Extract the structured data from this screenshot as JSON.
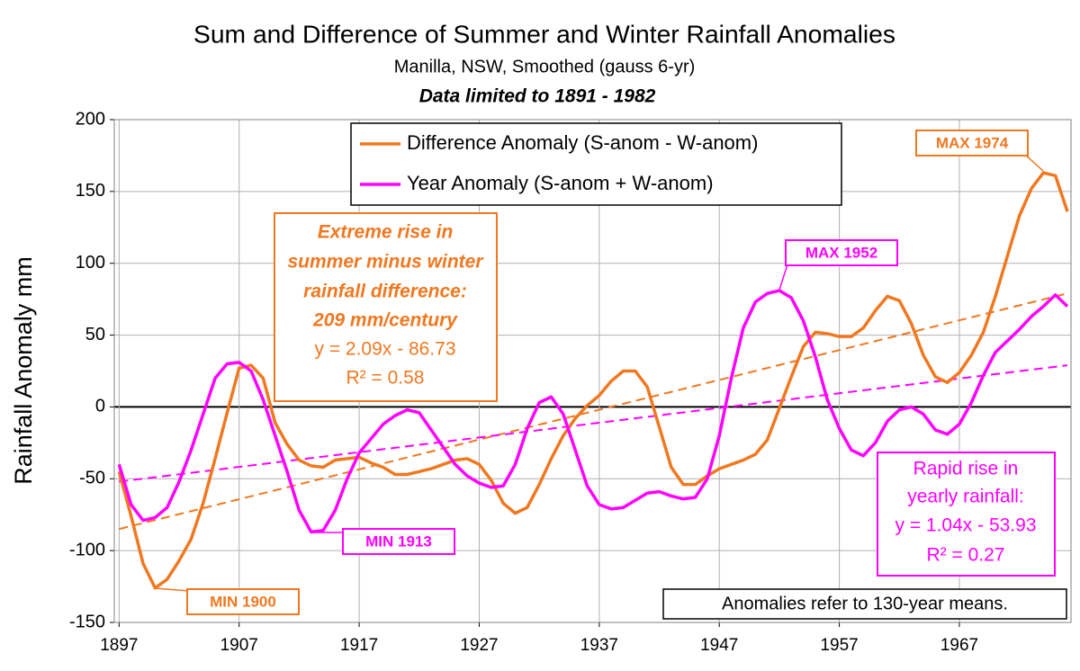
{
  "chart_data": {
    "type": "line",
    "title": "Sum and Difference of Summer and Winter Rainfall Anomalies",
    "subtitle": "Manilla, NSW, Smoothed (gauss 6-yr)",
    "subtitle2": "Data limited to 1891 -  1982",
    "y_label": "Rainfall Anomaly mm",
    "xlim": [
      1896.6,
      1976.3
    ],
    "xticks": [
      1897,
      1907,
      1917,
      1927,
      1937,
      1947,
      1957,
      1967
    ],
    "ylim": [
      -150,
      200
    ],
    "yticks": [
      -150,
      -100,
      -50,
      0,
      50,
      100,
      150,
      200
    ],
    "grid": true,
    "x": [
      1897,
      1898,
      1899,
      1900,
      1901,
      1902,
      1903,
      1904,
      1905,
      1906,
      1907,
      1908,
      1909,
      1910,
      1911,
      1912,
      1913,
      1914,
      1915,
      1916,
      1917,
      1918,
      1919,
      1920,
      1921,
      1922,
      1923,
      1924,
      1925,
      1926,
      1927,
      1928,
      1929,
      1930,
      1931,
      1932,
      1933,
      1934,
      1935,
      1936,
      1937,
      1938,
      1939,
      1940,
      1941,
      1942,
      1943,
      1944,
      1945,
      1946,
      1947,
      1948,
      1949,
      1950,
      1951,
      1952,
      1953,
      1954,
      1955,
      1956,
      1957,
      1958,
      1959,
      1960,
      1961,
      1962,
      1963,
      1964,
      1965,
      1966,
      1967,
      1968,
      1969,
      1970,
      1971,
      1972,
      1973,
      1974,
      1975,
      1976
    ],
    "series": [
      {
        "name": "Difference Anomaly (S-anom - W-anom)",
        "color": "#f07820",
        "values": [
          -45,
          -76,
          -109,
          -126,
          -120,
          -107,
          -92,
          -67,
          -36,
          -4,
          27,
          29,
          20,
          -11,
          -26,
          -37,
          -41,
          -42,
          -37,
          -36,
          -35,
          -39,
          -42,
          -47,
          -47,
          -45,
          -43,
          -40,
          -37,
          -36,
          -40,
          -51,
          -67,
          -74,
          -70,
          -54,
          -36,
          -20,
          -8,
          1,
          8,
          18,
          25,
          25,
          14,
          -14,
          -42,
          -54,
          -54,
          -48,
          -43,
          -40,
          -37,
          -33,
          -23,
          -1,
          21,
          42,
          52,
          51,
          49,
          49,
          55,
          67,
          77,
          74,
          58,
          36,
          21,
          17,
          24,
          36,
          52,
          77,
          105,
          133,
          152,
          163,
          161,
          136
        ]
      },
      {
        "name": "Year Anomaly (S-anom + W-anom)",
        "color": "#ff00ff",
        "values": [
          -40,
          -68,
          -79,
          -77,
          -70,
          -52,
          -30,
          -5,
          20,
          30,
          31,
          25,
          5,
          -20,
          -45,
          -72,
          -87,
          -86,
          -72,
          -50,
          -32,
          -22,
          -12,
          -6,
          -2,
          -4,
          -16,
          -28,
          -40,
          -48,
          -53,
          -56,
          -55,
          -40,
          -15,
          3,
          7,
          -5,
          -30,
          -55,
          -68,
          -71,
          -70,
          -65,
          -60,
          -59,
          -62,
          -64,
          -63,
          -50,
          -20,
          20,
          55,
          73,
          79,
          81,
          76,
          60,
          35,
          5,
          -15,
          -30,
          -34,
          -25,
          -10,
          -2,
          0,
          -5,
          -16,
          -19,
          -12,
          3,
          22,
          38,
          46,
          54,
          63,
          70,
          78,
          70
        ]
      }
    ],
    "trendlines": [
      {
        "color": "#f07820",
        "x": [
          1897,
          1976
        ],
        "values": [
          -85,
          79
        ]
      },
      {
        "color": "#ff00ff",
        "x": [
          1897,
          1976
        ],
        "values": [
          -52,
          29
        ]
      }
    ],
    "callouts": [
      {
        "text": "MIN 1900",
        "color": "#f07820"
      },
      {
        "text": "MIN 1913",
        "color": "#ff00ff"
      },
      {
        "text": "MAX 1952",
        "color": "#ff00ff"
      },
      {
        "text": "MAX 1974",
        "color": "#f07820"
      }
    ],
    "orange_note": [
      "Extreme rise in",
      "summer minus winter",
      "rainfall difference:",
      "209 mm/century",
      "y = 2.09x - 86.73",
      "R² = 0.58"
    ],
    "magenta_note": [
      "Rapid rise in",
      "yearly rainfall:",
      "y = 1.04x - 53.93",
      "R² = 0.27"
    ],
    "footnote": "Anomalies refer to 130-year means."
  }
}
